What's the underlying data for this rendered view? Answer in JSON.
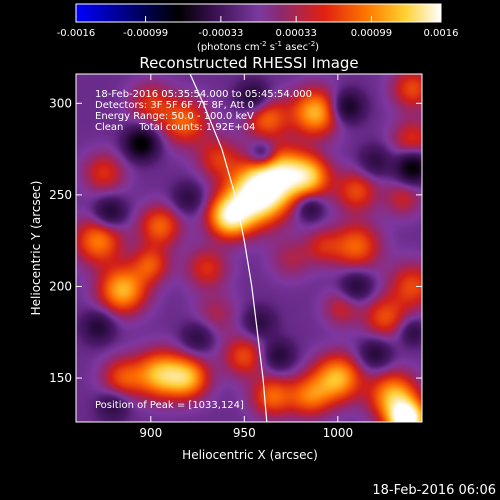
{
  "colorbar": {
    "tick_labels": [
      "-0.0016",
      "-0.00099",
      "-0.00033",
      "0.00033",
      "0.00099",
      "0.0016"
    ],
    "range": [
      -0.0016,
      0.0016
    ],
    "units_prefix": "(photons cm",
    "units_exp1": "-2",
    "units_mid": " s",
    "units_exp2": "-1",
    "units_suffix": " asec",
    "units_exp3": "-2",
    "units_close": ")",
    "colormap": [
      "#0000ff",
      "#000000",
      "#4b1a66",
      "#8a3fb0",
      "#cc2a24",
      "#ff6600",
      "#ffcc33",
      "#ffffff"
    ]
  },
  "plot": {
    "title": "Reconstructed RHESSI Image",
    "xlabel": "Heliocentric X (arcsec)",
    "ylabel": "Heliocentric Y (arcsec)",
    "xlim": [
      860,
      1045
    ],
    "ylim": [
      126,
      316
    ],
    "xticks": [
      {
        "v": 900,
        "label": "900"
      },
      {
        "v": 950,
        "label": "950"
      },
      {
        "v": 1000,
        "label": "1000"
      }
    ],
    "yticks": [
      {
        "v": 150,
        "label": "150"
      },
      {
        "v": 200,
        "label": "200"
      },
      {
        "v": 250,
        "label": "250"
      },
      {
        "v": 300,
        "label": "300"
      }
    ],
    "info_lines": [
      "18-Feb-2016 05:35:54.000 to 05:45:54.000",
      "Detectors: 3F 5F 6F 7F 8F, Att 0",
      "Energy Range: 50.0 - 100.0 keV",
      "Clean     Total counts: 1.92E+04"
    ],
    "peak_text": "Position of Peak = [1033,124]",
    "footer_date": "18-Feb-2016 06:06"
  },
  "chart_data": {
    "type": "heatmap",
    "title": "Reconstructed RHESSI Image",
    "xlabel": "Heliocentric X (arcsec)",
    "ylabel": "Heliocentric Y (arcsec)",
    "xlim": [
      860,
      1045
    ],
    "ylim": [
      126,
      316
    ],
    "clim": [
      -0.0016,
      0.0016
    ],
    "colorbar_label": "(photons cm-2 s-1 asec-2)",
    "peak": [
      1033,
      124
    ],
    "blobs": [
      {
        "x": 957,
        "y": 250,
        "v": 0.0016,
        "s": 11
      },
      {
        "x": 942,
        "y": 238,
        "v": 0.0012,
        "s": 8
      },
      {
        "x": 970,
        "y": 262,
        "v": 0.001,
        "s": 10
      },
      {
        "x": 985,
        "y": 260,
        "v": 0.0009,
        "s": 8
      },
      {
        "x": 988,
        "y": 295,
        "v": 0.001,
        "s": 9
      },
      {
        "x": 962,
        "y": 292,
        "v": 0.0007,
        "s": 8
      },
      {
        "x": 936,
        "y": 270,
        "v": 0.0005,
        "s": 8
      },
      {
        "x": 1010,
        "y": 252,
        "v": 0.0006,
        "s": 8
      },
      {
        "x": 1010,
        "y": 222,
        "v": 0.0007,
        "s": 9
      },
      {
        "x": 992,
        "y": 222,
        "v": 0.0004,
        "s": 7
      },
      {
        "x": 1040,
        "y": 308,
        "v": 0.0006,
        "s": 8
      },
      {
        "x": 1040,
        "y": 280,
        "v": 0.0005,
        "s": 8
      },
      {
        "x": 1035,
        "y": 248,
        "v": 0.0004,
        "s": 7
      },
      {
        "x": 1040,
        "y": 200,
        "v": 0.0006,
        "s": 9
      },
      {
        "x": 1025,
        "y": 183,
        "v": 0.0006,
        "s": 8
      },
      {
        "x": 1002,
        "y": 188,
        "v": 0.0004,
        "s": 7
      },
      {
        "x": 1030,
        "y": 140,
        "v": 0.001,
        "s": 9
      },
      {
        "x": 1037,
        "y": 127,
        "v": 0.0016,
        "s": 7
      },
      {
        "x": 1000,
        "y": 150,
        "v": 0.001,
        "s": 9
      },
      {
        "x": 985,
        "y": 140,
        "v": 0.0007,
        "s": 8
      },
      {
        "x": 965,
        "y": 140,
        "v": 0.0007,
        "s": 8
      },
      {
        "x": 950,
        "y": 162,
        "v": 0.0006,
        "s": 8
      },
      {
        "x": 920,
        "y": 150,
        "v": 0.0009,
        "s": 8
      },
      {
        "x": 905,
        "y": 152,
        "v": 0.001,
        "s": 9
      },
      {
        "x": 885,
        "y": 150,
        "v": 0.0006,
        "s": 8
      },
      {
        "x": 885,
        "y": 198,
        "v": 0.001,
        "s": 9
      },
      {
        "x": 900,
        "y": 212,
        "v": 0.0006,
        "s": 7
      },
      {
        "x": 872,
        "y": 225,
        "v": 0.0008,
        "s": 9
      },
      {
        "x": 905,
        "y": 233,
        "v": 0.0007,
        "s": 8
      },
      {
        "x": 875,
        "y": 262,
        "v": 0.0005,
        "s": 8
      },
      {
        "x": 918,
        "y": 290,
        "v": 0.0007,
        "s": 9
      },
      {
        "x": 900,
        "y": 300,
        "v": 0.0005,
        "s": 8
      },
      {
        "x": 930,
        "y": 210,
        "v": 0.0005,
        "s": 8
      },
      {
        "x": 935,
        "y": 185,
        "v": 0.0003,
        "s": 8
      },
      {
        "x": 975,
        "y": 215,
        "v": 0.0003,
        "s": 8
      },
      {
        "x": 955,
        "y": 303,
        "v": -0.0006,
        "s": 6
      },
      {
        "x": 895,
        "y": 278,
        "v": -0.0009,
        "s": 6
      },
      {
        "x": 960,
        "y": 272,
        "v": -0.0006,
        "s": 5
      },
      {
        "x": 1005,
        "y": 298,
        "v": -0.0007,
        "s": 6
      },
      {
        "x": 1040,
        "y": 265,
        "v": -0.0009,
        "s": 6
      },
      {
        "x": 878,
        "y": 240,
        "v": -0.0006,
        "s": 6
      },
      {
        "x": 985,
        "y": 243,
        "v": -0.0005,
        "s": 5
      },
      {
        "x": 920,
        "y": 248,
        "v": -0.0004,
        "s": 6
      },
      {
        "x": 1010,
        "y": 200,
        "v": -0.0005,
        "s": 6
      },
      {
        "x": 872,
        "y": 178,
        "v": -0.0005,
        "s": 6
      },
      {
        "x": 1040,
        "y": 175,
        "v": -0.0004,
        "s": 5
      },
      {
        "x": 958,
        "y": 180,
        "v": -0.0004,
        "s": 6
      },
      {
        "x": 968,
        "y": 162,
        "v": -0.0005,
        "s": 6
      },
      {
        "x": 1020,
        "y": 163,
        "v": -0.0005,
        "s": 6
      },
      {
        "x": 880,
        "y": 135,
        "v": -0.0004,
        "s": 6
      },
      {
        "x": 925,
        "y": 172,
        "v": -0.0004,
        "s": 6
      },
      {
        "x": 1020,
        "y": 268,
        "v": -0.0004,
        "s": 6
      }
    ],
    "limb_curve": [
      [
        921,
        316
      ],
      [
        928,
        300
      ],
      [
        938,
        275
      ],
      [
        945,
        250
      ],
      [
        950,
        225
      ],
      [
        954,
        200
      ],
      [
        957,
        175
      ],
      [
        960,
        150
      ],
      [
        962,
        126
      ]
    ]
  }
}
